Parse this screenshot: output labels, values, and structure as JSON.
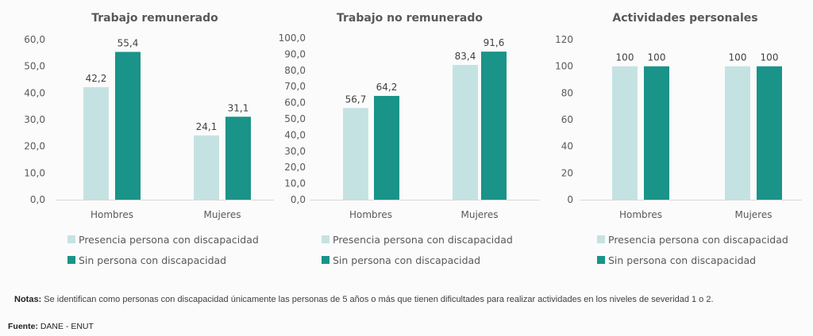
{
  "colors": {
    "light": "#c5e2e3",
    "dark": "#1a9388"
  },
  "chart_data": [
    {
      "type": "bar",
      "title": "Trabajo remunerado",
      "categories": [
        "Hombres",
        "Mujeres"
      ],
      "series": [
        {
          "name": "Presencia persona con discapacidad",
          "values": [
            42.2,
            24.1
          ]
        },
        {
          "name": "Sin persona con discapacidad",
          "values": [
            55.4,
            31.1
          ]
        }
      ],
      "value_labels": [
        [
          "42,2",
          "24,1"
        ],
        [
          "55,4",
          "31,1"
        ]
      ],
      "ylim": [
        0,
        60
      ],
      "yticks": [
        "0,0",
        "10,0",
        "20,0",
        "30,0",
        "40,0",
        "50,0",
        "60,0"
      ]
    },
    {
      "type": "bar",
      "title": "Trabajo no remunerado",
      "categories": [
        "Hombres",
        "Mujeres"
      ],
      "series": [
        {
          "name": "Presencia persona con discapacidad",
          "values": [
            56.7,
            83.4
          ]
        },
        {
          "name": "Sin persona con discapacidad",
          "values": [
            64.2,
            91.6
          ]
        }
      ],
      "value_labels": [
        [
          "56,7",
          "83,4"
        ],
        [
          "64,2",
          "91,6"
        ]
      ],
      "ylim": [
        0,
        100
      ],
      "yticks": [
        "0,0",
        "10,0",
        "20,0",
        "30,0",
        "40,0",
        "50,0",
        "60,0",
        "70,0",
        "80,0",
        "90,0",
        "100,0"
      ]
    },
    {
      "type": "bar",
      "title": "Actividades personales",
      "categories": [
        "Hombres",
        "Mujeres"
      ],
      "series": [
        {
          "name": "Presencia persona con discapacidad",
          "values": [
            100,
            100
          ]
        },
        {
          "name": "Sin persona con discapacidad",
          "values": [
            100,
            100
          ]
        }
      ],
      "value_labels": [
        [
          "100",
          "100"
        ],
        [
          "100",
          "100"
        ]
      ],
      "ylim": [
        0,
        120
      ],
      "yticks": [
        "0",
        "20",
        "40",
        "60",
        "80",
        "100",
        "120"
      ]
    }
  ],
  "notes": {
    "label": "Notas:",
    "text": " Se identifican como personas con discapacidad únicamente las personas de 5 años o más que tienen dificultades para realizar actividades en los niveles de severidad 1 o 2."
  },
  "source": {
    "label": "Fuente:",
    "text": " DANE - ENUT"
  }
}
